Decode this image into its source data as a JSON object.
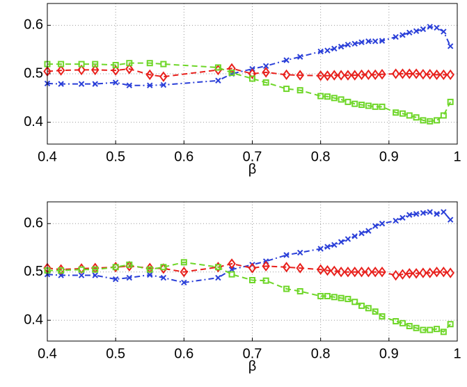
{
  "chart_data": [
    {
      "type": "line",
      "xlabel": "β",
      "x": [
        0.4,
        0.42,
        0.45,
        0.47,
        0.5,
        0.52,
        0.55,
        0.57,
        0.65,
        0.67,
        0.7,
        0.72,
        0.75,
        0.77,
        0.8,
        0.81,
        0.82,
        0.83,
        0.84,
        0.85,
        0.86,
        0.87,
        0.88,
        0.89,
        0.91,
        0.92,
        0.93,
        0.94,
        0.95,
        0.96,
        0.97,
        0.98,
        0.99
      ],
      "xlim": [
        0.4,
        1
      ],
      "xticks": [
        0.4,
        0.5,
        0.6,
        0.7,
        0.8,
        0.9,
        1
      ],
      "ylim": [
        0.355,
        0.645
      ],
      "yticks": [
        0.4,
        0.5,
        0.6
      ],
      "grid": true,
      "series": [
        {
          "color": "#2a3fd8",
          "marker": "x",
          "linestyle": "dashdot",
          "values": [
            0.48,
            0.479,
            0.479,
            0.479,
            0.482,
            0.476,
            0.476,
            0.477,
            0.486,
            0.5,
            0.51,
            0.516,
            0.528,
            0.535,
            0.546,
            0.548,
            0.552,
            0.556,
            0.56,
            0.562,
            0.565,
            0.567,
            0.567,
            0.568,
            0.576,
            0.58,
            0.585,
            0.588,
            0.592,
            0.597,
            0.595,
            0.587,
            0.557
          ]
        },
        {
          "color": "#e8201c",
          "marker": "diamond",
          "linestyle": "dashed",
          "values": [
            0.505,
            0.507,
            0.508,
            0.508,
            0.507,
            0.51,
            0.498,
            0.494,
            0.508,
            0.511,
            0.5,
            0.503,
            0.498,
            0.497,
            0.496,
            0.496,
            0.497,
            0.497,
            0.497,
            0.497,
            0.498,
            0.498,
            0.498,
            0.499,
            0.5,
            0.5,
            0.5,
            0.5,
            0.499,
            0.499,
            0.498,
            0.498,
            0.498
          ]
        },
        {
          "color": "#6ed628",
          "marker": "square",
          "linestyle": "dashed",
          "values": [
            0.52,
            0.52,
            0.52,
            0.52,
            0.518,
            0.522,
            0.522,
            0.52,
            0.513,
            0.502,
            0.49,
            0.482,
            0.469,
            0.466,
            0.454,
            0.453,
            0.45,
            0.447,
            0.442,
            0.438,
            0.436,
            0.434,
            0.432,
            0.432,
            0.42,
            0.418,
            0.414,
            0.41,
            0.404,
            0.402,
            0.404,
            0.414,
            0.442
          ]
        }
      ]
    },
    {
      "type": "line",
      "xlabel": "β",
      "x": [
        0.4,
        0.42,
        0.45,
        0.47,
        0.5,
        0.52,
        0.55,
        0.57,
        0.6,
        0.65,
        0.67,
        0.7,
        0.72,
        0.75,
        0.77,
        0.8,
        0.81,
        0.82,
        0.83,
        0.84,
        0.85,
        0.86,
        0.87,
        0.88,
        0.89,
        0.91,
        0.92,
        0.93,
        0.94,
        0.95,
        0.96,
        0.97,
        0.98,
        0.99
      ],
      "xlim": [
        0.4,
        1
      ],
      "xticks": [
        0.4,
        0.5,
        0.6,
        0.7,
        0.8,
        0.9,
        1
      ],
      "ylim": [
        0.357,
        0.645
      ],
      "yticks": [
        0.4,
        0.5,
        0.6
      ],
      "grid": true,
      "series": [
        {
          "color": "#2a3fd8",
          "marker": "x",
          "linestyle": "dashdot",
          "values": [
            0.495,
            0.493,
            0.493,
            0.493,
            0.485,
            0.488,
            0.494,
            0.488,
            0.478,
            0.488,
            0.505,
            0.515,
            0.522,
            0.535,
            0.54,
            0.548,
            0.552,
            0.556,
            0.562,
            0.568,
            0.574,
            0.58,
            0.585,
            0.595,
            0.6,
            0.606,
            0.612,
            0.618,
            0.62,
            0.622,
            0.624,
            0.62,
            0.624,
            0.608
          ]
        },
        {
          "color": "#e8201c",
          "marker": "diamond",
          "linestyle": "dashed",
          "values": [
            0.508,
            0.505,
            0.507,
            0.508,
            0.51,
            0.512,
            0.508,
            0.507,
            0.5,
            0.51,
            0.517,
            0.508,
            0.512,
            0.51,
            0.508,
            0.505,
            0.503,
            0.502,
            0.5,
            0.5,
            0.5,
            0.5,
            0.5,
            0.5,
            0.5,
            0.493,
            0.495,
            0.497,
            0.497,
            0.498,
            0.498,
            0.5,
            0.5,
            0.498
          ]
        },
        {
          "color": "#6ed628",
          "marker": "square",
          "linestyle": "dashed",
          "values": [
            0.503,
            0.503,
            0.505,
            0.505,
            0.51,
            0.515,
            0.505,
            0.51,
            0.52,
            0.51,
            0.495,
            0.483,
            0.482,
            0.465,
            0.46,
            0.45,
            0.45,
            0.448,
            0.446,
            0.444,
            0.438,
            0.43,
            0.425,
            0.418,
            0.408,
            0.398,
            0.394,
            0.388,
            0.384,
            0.38,
            0.38,
            0.382,
            0.376,
            0.392
          ]
        }
      ]
    }
  ]
}
